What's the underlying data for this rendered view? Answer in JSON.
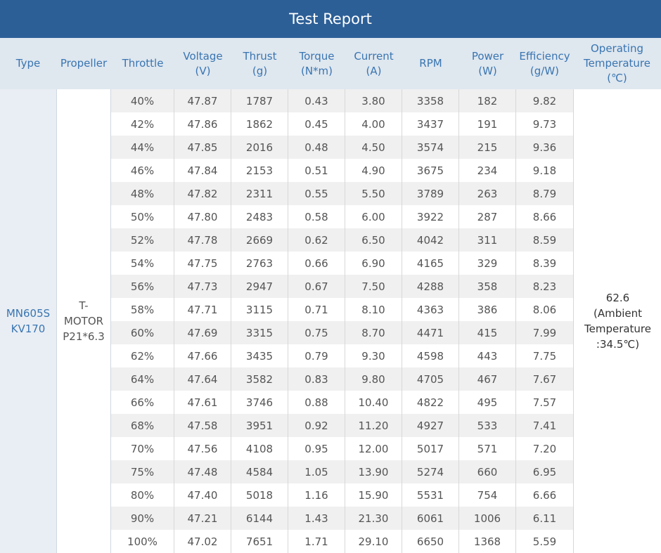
{
  "title": "Test Report",
  "headers": {
    "type": [
      "Type"
    ],
    "propeller": [
      "Propeller"
    ],
    "throttle": [
      "Throttle"
    ],
    "voltage": [
      "Voltage",
      "(V)"
    ],
    "thrust": [
      "Thrust",
      "(g)"
    ],
    "torque": [
      "Torque",
      "(N*m)"
    ],
    "current": [
      "Current",
      "(A)"
    ],
    "rpm": [
      "RPM"
    ],
    "power": [
      "Power",
      "(W)"
    ],
    "efficiency": [
      "Efficiency",
      "(g/W)"
    ],
    "temperature": [
      "Operating",
      "Temperature",
      "(℃)"
    ]
  },
  "type_value": [
    "MN605S",
    "KV170"
  ],
  "propeller_value": [
    "T-",
    "MOTOR",
    "P21*6.3"
  ],
  "temperature_value": [
    "62.6",
    "(Ambient",
    "Temperature",
    ":34.5℃)"
  ],
  "rows": [
    [
      "40%",
      "47.87",
      "1787",
      "0.43",
      "3.80",
      "3358",
      "182",
      "9.82"
    ],
    [
      "42%",
      "47.86",
      "1862",
      "0.45",
      "4.00",
      "3437",
      "191",
      "9.73"
    ],
    [
      "44%",
      "47.85",
      "2016",
      "0.48",
      "4.50",
      "3574",
      "215",
      "9.36"
    ],
    [
      "46%",
      "47.84",
      "2153",
      "0.51",
      "4.90",
      "3675",
      "234",
      "9.18"
    ],
    [
      "48%",
      "47.82",
      "2311",
      "0.55",
      "5.50",
      "3789",
      "263",
      "8.79"
    ],
    [
      "50%",
      "47.80",
      "2483",
      "0.58",
      "6.00",
      "3922",
      "287",
      "8.66"
    ],
    [
      "52%",
      "47.78",
      "2669",
      "0.62",
      "6.50",
      "4042",
      "311",
      "8.59"
    ],
    [
      "54%",
      "47.75",
      "2763",
      "0.66",
      "6.90",
      "4165",
      "329",
      "8.39"
    ],
    [
      "56%",
      "47.73",
      "2947",
      "0.67",
      "7.50",
      "4288",
      "358",
      "8.23"
    ],
    [
      "58%",
      "47.71",
      "3115",
      "0.71",
      "8.10",
      "4363",
      "386",
      "8.06"
    ],
    [
      "60%",
      "47.69",
      "3315",
      "0.75",
      "8.70",
      "4471",
      "415",
      "7.99"
    ],
    [
      "62%",
      "47.66",
      "3435",
      "0.79",
      "9.30",
      "4598",
      "443",
      "7.75"
    ],
    [
      "64%",
      "47.64",
      "3582",
      "0.83",
      "9.80",
      "4705",
      "467",
      "7.67"
    ],
    [
      "66%",
      "47.61",
      "3746",
      "0.88",
      "10.40",
      "4822",
      "495",
      "7.57"
    ],
    [
      "68%",
      "47.58",
      "3951",
      "0.92",
      "11.20",
      "4927",
      "533",
      "7.41"
    ],
    [
      "70%",
      "47.56",
      "4108",
      "0.95",
      "12.00",
      "5017",
      "571",
      "7.20"
    ],
    [
      "75%",
      "47.48",
      "4584",
      "1.05",
      "13.90",
      "5274",
      "660",
      "6.95"
    ],
    [
      "80%",
      "47.40",
      "5018",
      "1.16",
      "15.90",
      "5531",
      "754",
      "6.66"
    ],
    [
      "90%",
      "47.21",
      "6144",
      "1.43",
      "21.30",
      "6061",
      "1006",
      "6.11"
    ],
    [
      "100%",
      "47.02",
      "7651",
      "1.71",
      "29.10",
      "6650",
      "1368",
      "5.59"
    ]
  ]
}
